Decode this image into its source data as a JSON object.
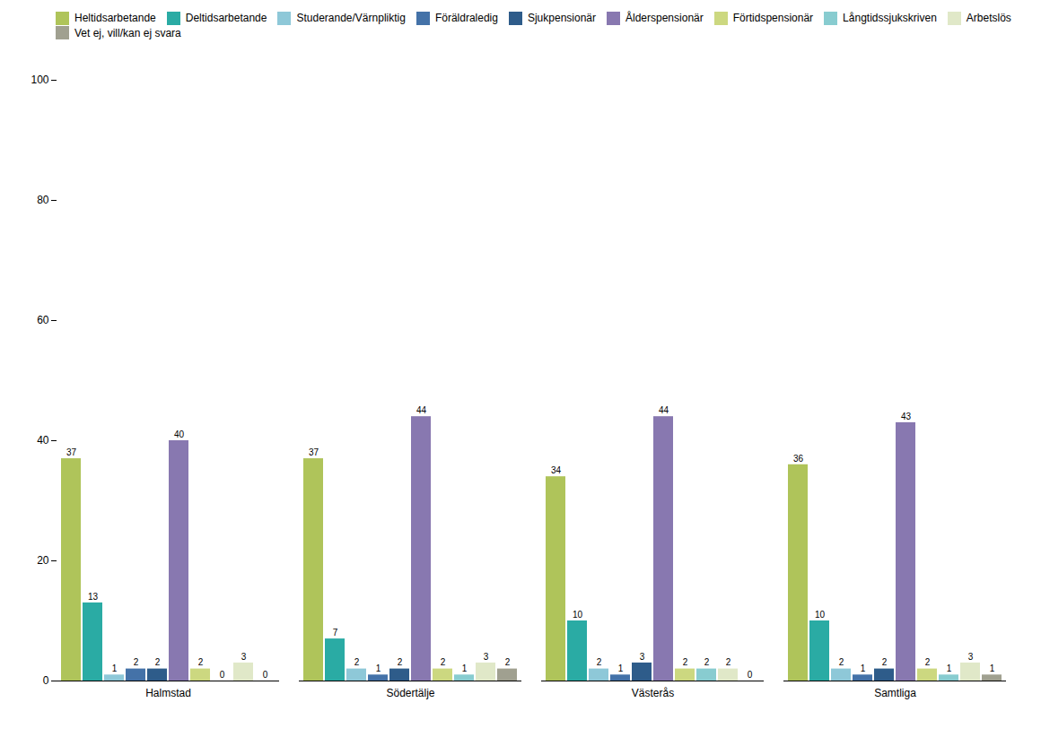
{
  "chart_data": {
    "type": "bar",
    "categories": [
      "Halmstad",
      "Södertälje",
      "Västerås",
      "Samtliga"
    ],
    "series": [
      {
        "name": "Heltidsarbetande",
        "color": "#afc45a",
        "values": [
          37,
          37,
          34,
          36
        ]
      },
      {
        "name": "Deltidsarbetande",
        "color": "#2aaba4",
        "values": [
          13,
          7,
          10,
          10
        ]
      },
      {
        "name": "Studerande/Värnpliktig",
        "color": "#8ec8d8",
        "values": [
          1,
          2,
          2,
          2
        ]
      },
      {
        "name": "Föräldraledig",
        "color": "#4472a8",
        "values": [
          2,
          1,
          1,
          1
        ]
      },
      {
        "name": "Sjukpensionär",
        "color": "#2e5c8a",
        "values": [
          2,
          2,
          3,
          2
        ]
      },
      {
        "name": "Ålderspensionär",
        "color": "#8878b0",
        "values": [
          40,
          44,
          44,
          43
        ]
      },
      {
        "name": "Förtidspensionär",
        "color": "#ccd880",
        "values": [
          2,
          2,
          2,
          2
        ]
      },
      {
        "name": "Långtidssjukskriven",
        "color": "#88ccd0",
        "values": [
          0,
          1,
          2,
          1
        ]
      },
      {
        "name": "Arbetslös",
        "color": "#e0e8c8",
        "values": [
          3,
          3,
          2,
          3
        ]
      },
      {
        "name": "Vet ej, vill/kan ej svara",
        "color": "#a0a090",
        "values": [
          0,
          2,
          0,
          1
        ]
      }
    ],
    "ylim": [
      0,
      100
    ],
    "yticks": [
      0,
      20,
      40,
      60,
      80,
      100
    ],
    "grid": false,
    "data_labels": true,
    "legend": "top"
  }
}
